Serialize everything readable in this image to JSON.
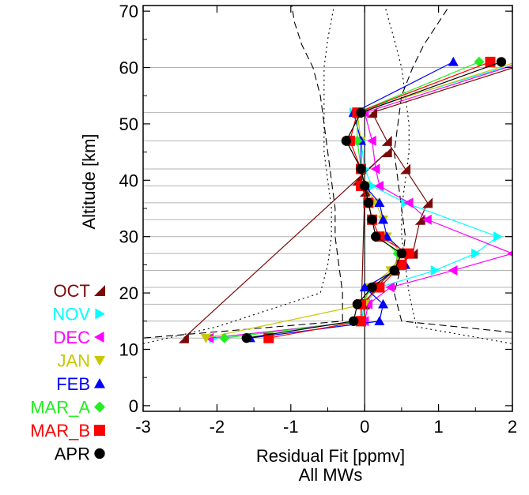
{
  "chart_data": {
    "type": "line",
    "xlabel": "Residual Fit [ppmv]",
    "xlabel_line2": "All MWs",
    "ylabel": "Altitude [km]",
    "xlim": [
      -3,
      2
    ],
    "ylim": [
      -1,
      71
    ],
    "xticks": [
      "-3",
      "-2",
      "-1",
      "0",
      "1",
      "2"
    ],
    "yticks": [
      "0",
      "10",
      "20",
      "30",
      "40",
      "50",
      "60",
      "70"
    ],
    "xtick_values": [
      -3,
      -2,
      -1,
      0,
      1,
      2
    ],
    "ytick_values": [
      0,
      10,
      20,
      30,
      40,
      50,
      60,
      70
    ],
    "grid_y": [
      12,
      15,
      18,
      21,
      24,
      27,
      30,
      33,
      36,
      39,
      42,
      47,
      52,
      60
    ],
    "legend_placement": "left",
    "series": [
      {
        "name": "OCT",
        "color": "#7a0a0a",
        "marker": "triangle-bottomleft",
        "x": [
          2.5,
          0.1,
          0.3,
          0.55,
          0.85,
          0.75,
          0.65,
          0.4,
          0.15,
          0.0,
          -0.05,
          0.0,
          -0.1,
          0.3,
          -2.45
        ],
        "y": [
          62,
          52,
          47,
          42,
          36,
          33,
          27,
          24,
          21,
          18,
          15,
          38,
          40,
          45,
          12
        ]
      },
      {
        "name": "NOV",
        "color": "#00ffff",
        "marker": "triangle-right",
        "x": [
          2.4,
          -0.15,
          -0.05,
          0.0,
          0.1,
          0.55,
          1.8,
          1.5,
          0.95,
          0.2,
          0.0,
          -0.05,
          -2.05
        ],
        "y": [
          62,
          52,
          47,
          42,
          39,
          36,
          30,
          27,
          24,
          21,
          18,
          15,
          12
        ]
      },
      {
        "name": "DEC",
        "color": "#ff00ff",
        "marker": "triangle-left",
        "x": [
          2.4,
          0.0,
          0.1,
          0.15,
          0.2,
          0.6,
          0.85,
          2.0,
          1.2,
          0.35,
          0.05,
          0.0,
          -2.1
        ],
        "y": [
          62,
          52,
          47,
          42,
          39,
          36,
          33,
          27,
          24,
          21,
          18,
          15,
          12
        ]
      },
      {
        "name": "JAN",
        "color": "#c8c800",
        "marker": "triangle-down",
        "x": [
          2.3,
          -0.1,
          -0.05,
          -0.05,
          0.0,
          0.15,
          0.25,
          0.3,
          0.5,
          0.35,
          0.05,
          0.0,
          -2.15
        ],
        "y": [
          62,
          52,
          47,
          42,
          39,
          36,
          33,
          30,
          27,
          24,
          21,
          18,
          12
        ]
      },
      {
        "name": "FEB",
        "color": "#0000ff",
        "marker": "triangle-up",
        "x": [
          1.2,
          -0.15,
          -0.05,
          -0.05,
          0.0,
          0.2,
          0.25,
          0.3,
          0.55,
          0.55,
          0.0,
          0.25,
          0.2,
          -1.55
        ],
        "y": [
          61,
          52,
          47,
          42,
          39,
          36,
          33,
          30,
          27,
          25,
          21,
          18,
          15,
          12
        ]
      },
      {
        "name": "MAR_A",
        "color": "#22ee22",
        "marker": "diamond",
        "x": [
          1.55,
          -0.1,
          -0.1,
          -0.05,
          0.0,
          0.05,
          0.1,
          0.2,
          0.45,
          0.4,
          0.1,
          -0.05,
          -0.05,
          -1.9
        ],
        "y": [
          61,
          52,
          47,
          42,
          39,
          36,
          33,
          30,
          27,
          24,
          21,
          18,
          15,
          12
        ]
      },
      {
        "name": "MAR_B",
        "color": "#ff0000",
        "marker": "square",
        "x": [
          1.7,
          -0.1,
          -0.2,
          -0.05,
          -0.05,
          0.05,
          0.1,
          0.2,
          0.6,
          0.5,
          0.2,
          -0.05,
          -0.05,
          -1.3
        ],
        "y": [
          61,
          52,
          47,
          42,
          39,
          36,
          33,
          30,
          27,
          25,
          21,
          18,
          15,
          12
        ]
      },
      {
        "name": "APR",
        "color": "#000000",
        "marker": "circle",
        "x": [
          1.85,
          -0.05,
          -0.25,
          -0.05,
          0.0,
          0.05,
          0.1,
          0.15,
          0.5,
          0.4,
          0.1,
          -0.1,
          -0.15,
          -1.6
        ],
        "y": [
          61,
          52,
          47,
          42,
          39,
          36,
          33,
          30,
          27,
          24,
          21,
          18,
          15,
          12
        ]
      }
    ],
    "reference_curves": [
      {
        "style": "dashed",
        "side": "left",
        "x": [
          -1.0,
          -0.95,
          -0.85,
          -0.7,
          -0.6,
          -0.55,
          -0.5,
          -0.45,
          -0.4,
          -0.4,
          -0.35,
          -0.3,
          -0.3,
          -3.0
        ],
        "y": [
          72,
          68,
          64,
          60,
          55,
          50,
          45,
          40,
          35,
          30,
          25,
          20,
          15,
          12
        ]
      },
      {
        "style": "dotted",
        "side": "left",
        "x": [
          -0.4,
          -0.5,
          -0.55,
          -0.55,
          -0.55,
          -0.55,
          -0.5,
          -0.45,
          -0.45,
          -0.5,
          -0.6,
          -2.0,
          -3.0
        ],
        "y": [
          72,
          65,
          60,
          55,
          50,
          45,
          40,
          35,
          30,
          25,
          20,
          14,
          11
        ]
      },
      {
        "style": "dashed",
        "side": "right",
        "x": [
          1.2,
          1.0,
          0.8,
          0.65,
          0.5,
          0.45,
          0.4,
          0.45,
          0.5,
          0.55,
          0.5,
          0.4,
          0.5,
          2.0
        ],
        "y": [
          72,
          68,
          64,
          60,
          55,
          50,
          45,
          40,
          35,
          30,
          25,
          20,
          15,
          13
        ]
      },
      {
        "style": "dotted",
        "side": "right",
        "x": [
          0.25,
          0.4,
          0.5,
          0.55,
          0.6,
          0.6,
          0.55,
          0.5,
          0.5,
          0.55,
          0.6,
          0.7,
          2.0
        ],
        "y": [
          72,
          65,
          60,
          55,
          50,
          45,
          40,
          35,
          30,
          25,
          20,
          14,
          11
        ]
      }
    ]
  }
}
